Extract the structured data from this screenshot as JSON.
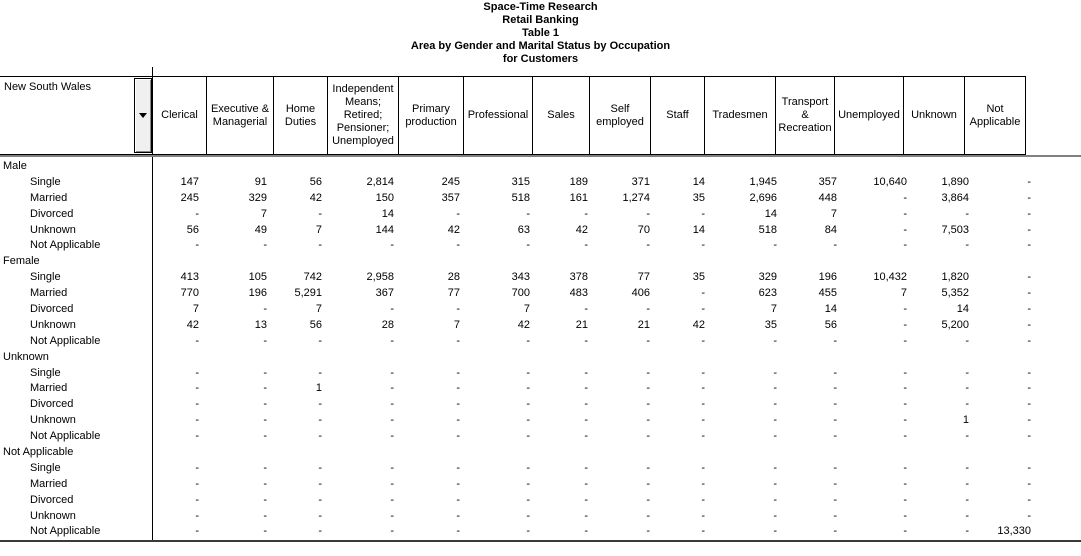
{
  "titles": [
    "Space-Time Research",
    "Retail Banking",
    "Table 1",
    "Area by Gender and Marital Status by Occupation",
    "for Customers"
  ],
  "area_selector": {
    "label": "New South Wales",
    "dropdown_icon": "chevron-down-icon"
  },
  "columns": [
    "Clerical",
    "Executive & Managerial",
    "Home Duties",
    "Independent Means; Retired; Pensioner; Unemployed",
    "Primary production",
    "Professional",
    "Sales",
    "Self employed",
    "Staff",
    "Tradesmen",
    "Transport & Recreation",
    "Unemployed",
    "Unknown",
    "Not Applicable"
  ],
  "row_groups": [
    {
      "label": "Male",
      "rows": [
        {
          "label": "Single",
          "values": [
            "147",
            "91",
            "56",
            "2,814",
            "245",
            "315",
            "189",
            "371",
            "14",
            "1,945",
            "357",
            "10,640",
            "1,890",
            "-"
          ]
        },
        {
          "label": "Married",
          "values": [
            "245",
            "329",
            "42",
            "150",
            "357",
            "518",
            "161",
            "1,274",
            "35",
            "2,696",
            "448",
            "-",
            "3,864",
            "-"
          ]
        },
        {
          "label": "Divorced",
          "values": [
            "-",
            "7",
            "-",
            "14",
            "-",
            "-",
            "-",
            "-",
            "-",
            "14",
            "7",
            "-",
            "-",
            "-"
          ]
        },
        {
          "label": "Unknown",
          "values": [
            "56",
            "49",
            "7",
            "144",
            "42",
            "63",
            "42",
            "70",
            "14",
            "518",
            "84",
            "-",
            "7,503",
            "-"
          ]
        },
        {
          "label": "Not Applicable",
          "values": [
            "-",
            "-",
            "-",
            "-",
            "-",
            "-",
            "-",
            "-",
            "-",
            "-",
            "-",
            "-",
            "-",
            "-"
          ]
        }
      ]
    },
    {
      "label": "Female",
      "rows": [
        {
          "label": "Single",
          "values": [
            "413",
            "105",
            "742",
            "2,958",
            "28",
            "343",
            "378",
            "77",
            "35",
            "329",
            "196",
            "10,432",
            "1,820",
            "-"
          ]
        },
        {
          "label": "Married",
          "values": [
            "770",
            "196",
            "5,291",
            "367",
            "77",
            "700",
            "483",
            "406",
            "-",
            "623",
            "455",
            "7",
            "5,352",
            "-"
          ]
        },
        {
          "label": "Divorced",
          "values": [
            "7",
            "-",
            "7",
            "-",
            "-",
            "7",
            "-",
            "-",
            "-",
            "7",
            "14",
            "-",
            "14",
            "-"
          ]
        },
        {
          "label": "Unknown",
          "values": [
            "42",
            "13",
            "56",
            "28",
            "7",
            "42",
            "21",
            "21",
            "42",
            "35",
            "56",
            "-",
            "5,200",
            "-"
          ]
        },
        {
          "label": "Not Applicable",
          "values": [
            "-",
            "-",
            "-",
            "-",
            "-",
            "-",
            "-",
            "-",
            "-",
            "-",
            "-",
            "-",
            "-",
            "-"
          ]
        }
      ]
    },
    {
      "label": "Unknown",
      "rows": [
        {
          "label": "Single",
          "values": [
            "-",
            "-",
            "-",
            "-",
            "-",
            "-",
            "-",
            "-",
            "-",
            "-",
            "-",
            "-",
            "-",
            "-"
          ]
        },
        {
          "label": "Married",
          "values": [
            "-",
            "-",
            "1",
            "-",
            "-",
            "-",
            "-",
            "-",
            "-",
            "-",
            "-",
            "-",
            "-",
            "-"
          ]
        },
        {
          "label": "Divorced",
          "values": [
            "-",
            "-",
            "-",
            "-",
            "-",
            "-",
            "-",
            "-",
            "-",
            "-",
            "-",
            "-",
            "-",
            "-"
          ]
        },
        {
          "label": "Unknown",
          "values": [
            "-",
            "-",
            "-",
            "-",
            "-",
            "-",
            "-",
            "-",
            "-",
            "-",
            "-",
            "-",
            "1",
            "-"
          ]
        },
        {
          "label": "Not Applicable",
          "values": [
            "-",
            "-",
            "-",
            "-",
            "-",
            "-",
            "-",
            "-",
            "-",
            "-",
            "-",
            "-",
            "-",
            "-"
          ]
        }
      ]
    },
    {
      "label": "Not Applicable",
      "rows": [
        {
          "label": "Single",
          "values": [
            "-",
            "-",
            "-",
            "-",
            "-",
            "-",
            "-",
            "-",
            "-",
            "-",
            "-",
            "-",
            "-",
            "-"
          ]
        },
        {
          "label": "Married",
          "values": [
            "-",
            "-",
            "-",
            "-",
            "-",
            "-",
            "-",
            "-",
            "-",
            "-",
            "-",
            "-",
            "-",
            "-"
          ]
        },
        {
          "label": "Divorced",
          "values": [
            "-",
            "-",
            "-",
            "-",
            "-",
            "-",
            "-",
            "-",
            "-",
            "-",
            "-",
            "-",
            "-",
            "-"
          ]
        },
        {
          "label": "Unknown",
          "values": [
            "-",
            "-",
            "-",
            "-",
            "-",
            "-",
            "-",
            "-",
            "-",
            "-",
            "-",
            "-",
            "-",
            "-"
          ]
        },
        {
          "label": "Not Applicable",
          "values": [
            "-",
            "-",
            "-",
            "-",
            "-",
            "-",
            "-",
            "-",
            "-",
            "-",
            "-",
            "-",
            "-",
            "13,330"
          ]
        }
      ]
    }
  ],
  "colors": {
    "cell_border": "#000000",
    "grid_underline": "#808080",
    "bottom_rule": "#3a3a3a",
    "button_face": "#f0f0f0",
    "text": "#000000"
  }
}
